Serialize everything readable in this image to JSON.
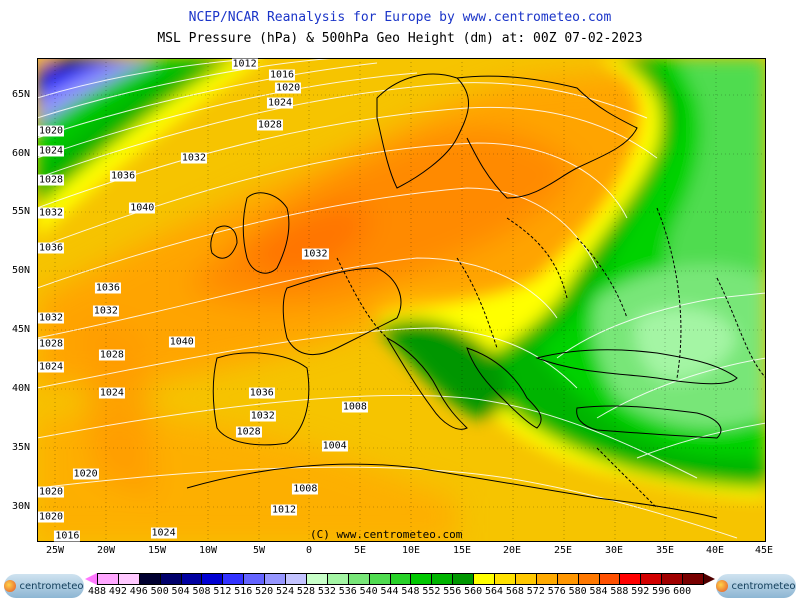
{
  "title_line1": "NCEP/NCAR Reanalysis for Europe by www.centrometeo.com",
  "title_line2": "MSL Pressure (hPa) & 500hPa Geo Height (dm) at: 00Z 07-02-2023",
  "copyright": "(C) www.centrometeo.com",
  "logo_text": "centrometeo",
  "lat_labels": [
    "65N",
    "60N",
    "55N",
    "50N",
    "45N",
    "40N",
    "35N",
    "30N"
  ],
  "lon_labels": [
    "25W",
    "20W",
    "15W",
    "10W",
    "5W",
    "0",
    "5E",
    "10E",
    "15E",
    "20E",
    "25E",
    "30E",
    "35E",
    "40E",
    "45E"
  ],
  "isobar_labels": [
    {
      "text": "1012",
      "lon": -6.5,
      "lat": 67.5
    },
    {
      "text": "1016",
      "lon": -2.8,
      "lat": 66.6
    },
    {
      "text": "1020",
      "lon": -2.2,
      "lat": 65.5
    },
    {
      "text": "1024",
      "lon": -3.0,
      "lat": 64.2
    },
    {
      "text": "1028",
      "lon": -4.0,
      "lat": 62.3
    },
    {
      "text": "1032",
      "lon": -11.5,
      "lat": 59.5
    },
    {
      "text": "1036",
      "lon": -18.5,
      "lat": 58.0
    },
    {
      "text": "1040",
      "lon": -16.6,
      "lat": 55.3
    },
    {
      "text": "1020",
      "lon": -27.3,
      "lat": 61.8
    },
    {
      "text": "1024",
      "lon": -25.9,
      "lat": 60.1
    },
    {
      "text": "1028",
      "lon": -27.0,
      "lat": 57.7
    },
    {
      "text": "1032",
      "lon": -30.6,
      "lat": 54.9
    },
    {
      "text": "1036",
      "lon": -35.8,
      "lat": 51.9
    },
    {
      "text": "1036",
      "lon": -20.0,
      "lat": 48.5
    },
    {
      "text": "1032",
      "lon": -20.2,
      "lat": 46.6
    },
    {
      "text": "1032",
      "lon": -30.9,
      "lat": 46.0
    },
    {
      "text": "1028",
      "lon": -29.6,
      "lat": 43.8
    },
    {
      "text": "1024",
      "lon": -29.6,
      "lat": 41.8
    },
    {
      "text": "1028",
      "lon": -19.6,
      "lat": 42.8
    },
    {
      "text": "1024",
      "lon": -19.6,
      "lat": 39.6
    },
    {
      "text": "1040",
      "lon": -12.7,
      "lat": 43.9
    },
    {
      "text": "1036",
      "lon": -4.8,
      "lat": 39.6
    },
    {
      "text": "1032",
      "lon": -4.7,
      "lat": 37.7
    },
    {
      "text": "1028",
      "lon": -6.1,
      "lat": 36.3
    },
    {
      "text": "1032",
      "lon": 0.5,
      "lat": 51.4
    },
    {
      "text": "1008",
      "lon": 4.4,
      "lat": 38.4
    },
    {
      "text": "1004",
      "lon": 2.4,
      "lat": 35.1
    },
    {
      "text": "1008",
      "lon": -0.5,
      "lat": 31.5
    },
    {
      "text": "1012",
      "lon": -2.6,
      "lat": 29.7
    },
    {
      "text": "1020",
      "lon": -22.2,
      "lat": 32.8
    },
    {
      "text": "1020",
      "lon": -25.7,
      "lat": 31.2
    },
    {
      "text": "1020",
      "lon": -29.9,
      "lat": 29.1
    },
    {
      "text": "1016",
      "lon": -24.0,
      "lat": 26.9
    },
    {
      "text": "1024",
      "lon": -14.5,
      "lat": 27.8
    }
  ],
  "geo_scale_labels": [
    "488",
    "492",
    "496",
    "500",
    "504",
    "508",
    "512",
    "516",
    "520",
    "524",
    "528",
    "532",
    "536",
    "540",
    "544",
    "548",
    "552",
    "556",
    "560",
    "564",
    "568",
    "572",
    "576",
    "580",
    "584",
    "588",
    "592",
    "596",
    "600"
  ],
  "geo_scale_colors": [
    "#ffa6ff",
    "#ffc8ff",
    "#000030",
    "#00006b",
    "#0000a0",
    "#0000d2",
    "#3232ff",
    "#6464ff",
    "#9696ff",
    "#c3c3ff",
    "#c8ffc8",
    "#a4f5a4",
    "#78e678",
    "#50dc50",
    "#28d228",
    "#00c800",
    "#00b400",
    "#009600",
    "#ffff00",
    "#ffe100",
    "#ffc800",
    "#ffaa00",
    "#ff9600",
    "#ff7800",
    "#ff5000",
    "#ff0000",
    "#d20000",
    "#a00000",
    "#780000"
  ],
  "scale_end_colors": {
    "left": "#ff78ff",
    "right": "#500000"
  },
  "colors": {
    "title_blue": "#1a34c8"
  }
}
